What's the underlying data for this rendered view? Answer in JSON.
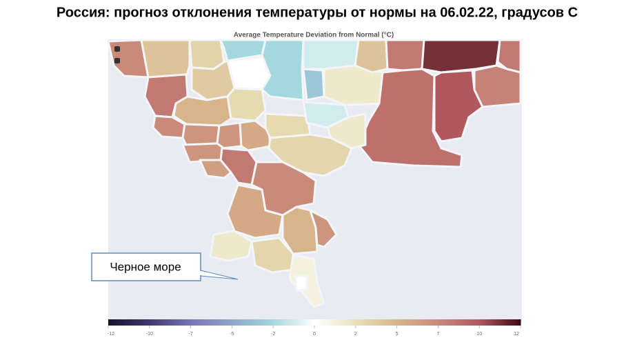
{
  "title": "Россия: прогноз отклонения температуры от нормы на 06.02.22, градусов С",
  "map": {
    "subtitle": "Average Temperature Deviation from Normal (°C)",
    "region_values": [
      7,
      4,
      8,
      3,
      -2,
      0,
      -2,
      -3,
      -1,
      1.5,
      4,
      8,
      11,
      8,
      8.5,
      10,
      7.5,
      3.5,
      2.5,
      5,
      7,
      6.5,
      6.5,
      5.5,
      2.5,
      -1,
      1.5,
      2.8,
      6.5,
      6,
      8,
      7,
      5.5,
      5,
      6.5,
      1.5,
      2.8,
      1,
      0
    ],
    "colorbar": {
      "ticks": [
        -12,
        -10,
        -7,
        -5,
        -2,
        0,
        2,
        5,
        7,
        10,
        12
      ],
      "colors": [
        "#1a1030",
        "#3d3a6b",
        "#7a74b8",
        "#8fa6c8",
        "#a3d8df",
        "#ffffff",
        "#e8e2b8",
        "#d7b48a",
        "#c98a7a",
        "#b0585e",
        "#3a0a10"
      ]
    }
  },
  "callout": "Черное море"
}
